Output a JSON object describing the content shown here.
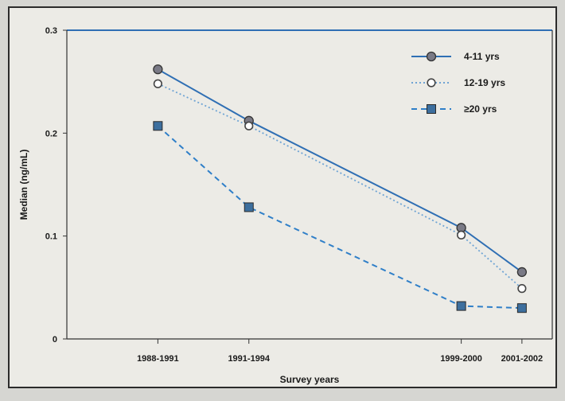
{
  "chart_data": {
    "type": "line",
    "title": "",
    "xlabel": "Survey years",
    "ylabel": "Median (ng/mL)",
    "categories": [
      "1988-1991",
      "1991-1994",
      "1999-2000",
      "2001-2002"
    ],
    "x": [
      1989.5,
      1992.5,
      1999.5,
      2001.5
    ],
    "xlim": [
      1986.5,
      2002.5
    ],
    "ylim": [
      0,
      0.3
    ],
    "yticks": [
      {
        "value": 0,
        "label": "0"
      },
      {
        "value": 0.1,
        "label": "0.1"
      },
      {
        "value": 0.2,
        "label": "0.2"
      },
      {
        "value": 0.3,
        "label": "0.3"
      }
    ],
    "grid": false,
    "legend_position": "top-right",
    "series": [
      {
        "name": "4-11 yrs",
        "values": [
          0.262,
          0.212,
          0.108,
          0.065
        ],
        "color": "#2f6fb4",
        "dash": "solid",
        "marker": "filled-circle"
      },
      {
        "name": "12-19 yrs",
        "values": [
          0.248,
          0.207,
          0.101,
          0.049
        ],
        "color": "#6fa4d4",
        "dash": "dotted",
        "marker": "open-circle"
      },
      {
        "name": "≥20 yrs",
        "values": [
          0.207,
          0.128,
          0.032,
          0.03
        ],
        "color": "#2f7fc8",
        "dash": "dashed",
        "marker": "filled-square"
      }
    ]
  }
}
